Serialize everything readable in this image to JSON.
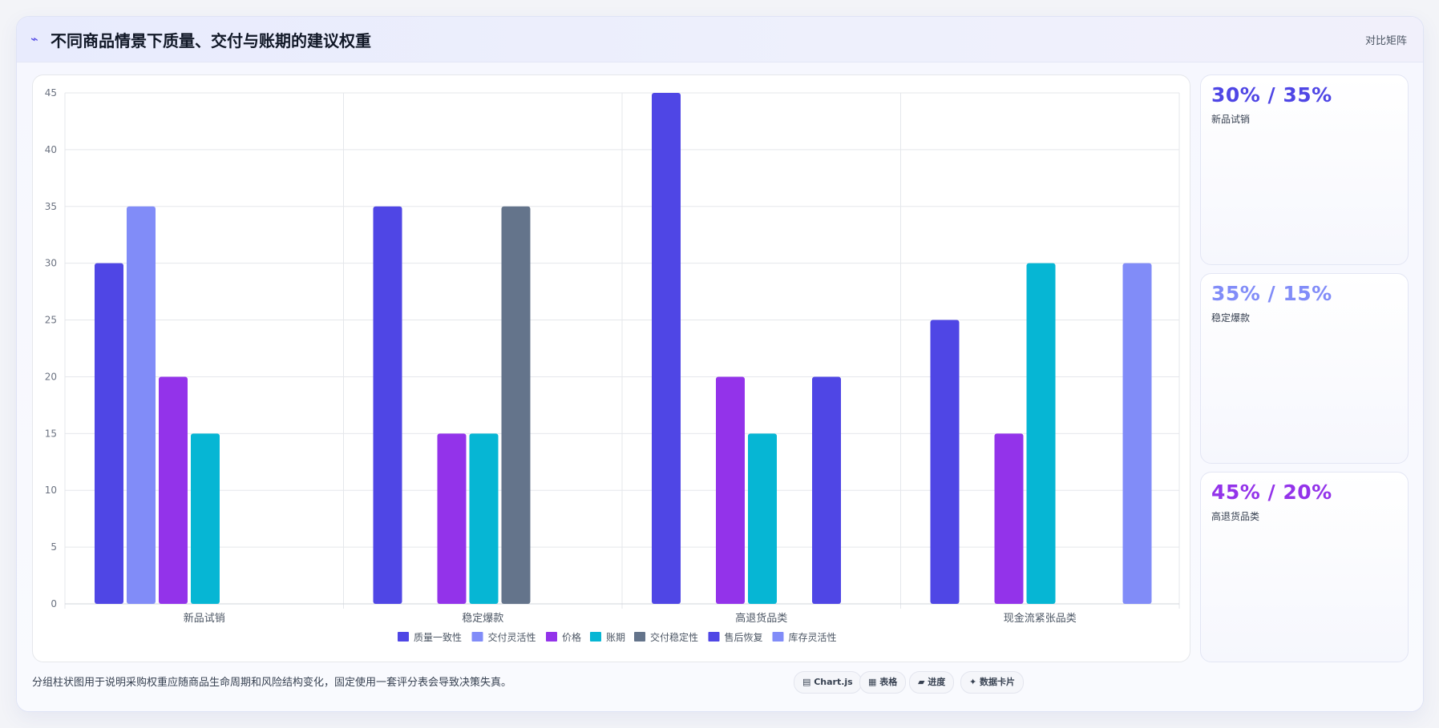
{
  "header": {
    "icon": "bolt-icon",
    "title": "不同商品情景下质量、交付与账期的建议权重",
    "tag": "对比矩阵"
  },
  "chart_data": {
    "type": "bar",
    "categories": [
      "新品试销",
      "稳定爆款",
      "高退货品类",
      "现金流紧张品类"
    ],
    "yticks": [
      "0",
      "5",
      "10",
      "15",
      "20",
      "25",
      "30",
      "35",
      "40",
      "45"
    ],
    "ylim": [
      0,
      45
    ],
    "grid": true,
    "legend_position": "bottom",
    "series": [
      {
        "name": "质量一致性",
        "color": "#4f46e5",
        "values": [
          30,
          35,
          45,
          25
        ]
      },
      {
        "name": "交付灵活性",
        "color": "#818cf8",
        "values": [
          35,
          null,
          null,
          null
        ]
      },
      {
        "name": "价格",
        "color": "#9333ea",
        "values": [
          20,
          15,
          20,
          15
        ]
      },
      {
        "name": "账期",
        "color": "#06b6d4",
        "values": [
          15,
          15,
          15,
          30
        ]
      },
      {
        "name": "交付稳定性",
        "color": "#64748b",
        "values": [
          null,
          35,
          null,
          null
        ]
      },
      {
        "name": "售后恢复",
        "color": "#4f46e5",
        "values": [
          null,
          null,
          20,
          null
        ]
      },
      {
        "name": "库存灵活性",
        "color": "#818cf8",
        "values": [
          null,
          null,
          null,
          30
        ]
      }
    ]
  },
  "side_cards": [
    {
      "value": "30% / 35%",
      "label": "新品试销",
      "color": "#4f46e5"
    },
    {
      "value": "35% / 15%",
      "label": "稳定爆款",
      "color": "#818cf8"
    },
    {
      "value": "45% / 20%",
      "label": "高退货品类",
      "color": "#9333ea"
    }
  ],
  "footer": {
    "note": "分组柱状图用于说明采购权重应随商品生命周期和风险结构变化，固定使用一套评分表会导致决策失真。",
    "pills": [
      "▤ Chart.js",
      "▦ 表格",
      "▰ 进度",
      "✦ 数据卡片"
    ]
  }
}
